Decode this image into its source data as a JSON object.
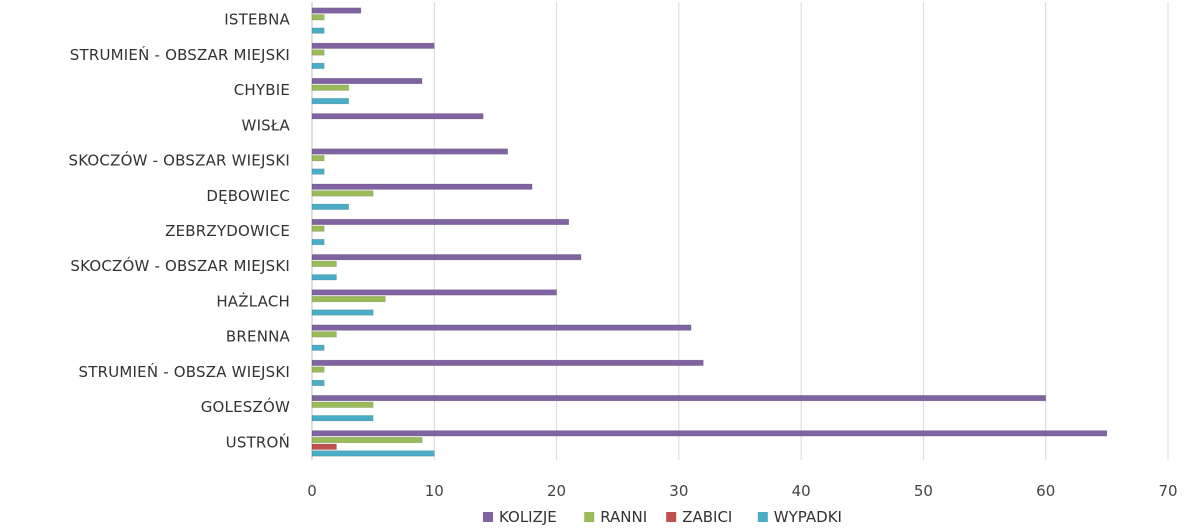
{
  "chart_data": {
    "type": "bar",
    "orientation": "horizontal",
    "categories": [
      "ISTEBNA",
      "STRUMIEŃ - OBSZAR MIEJSKI",
      "CHYBIE",
      "WISŁA",
      "SKOCZÓW - OBSZAR WIEJSKI",
      "DĘBOWIEC",
      "ZEBRZYDOWICE",
      "SKOCZÓW - OBSZAR MIEJSKI",
      "HAŻLACH",
      "BRENNA",
      "STRUMIEŃ - OBSZA WIEJSKI",
      "GOLESZÓW",
      "USTROŃ"
    ],
    "series": [
      {
        "name": "KOLIZJE",
        "color": "#8064a2",
        "values": [
          4,
          10,
          9,
          14,
          16,
          18,
          21,
          22,
          20,
          31,
          32,
          60,
          65
        ]
      },
      {
        "name": "RANNI",
        "color": "#9bbb59",
        "values": [
          1,
          1,
          3,
          0,
          1,
          5,
          1,
          2,
          6,
          2,
          1,
          5,
          9
        ]
      },
      {
        "name": "ZABICI",
        "color": "#c0504d",
        "values": [
          0,
          0,
          0,
          0,
          0,
          0,
          0,
          0,
          0,
          0,
          0,
          0,
          2
        ]
      },
      {
        "name": "WYPADKI",
        "color": "#4bacc6",
        "values": [
          1,
          1,
          3,
          0,
          1,
          3,
          1,
          2,
          5,
          1,
          1,
          5,
          10
        ]
      }
    ],
    "xlim": [
      0,
      70
    ],
    "x_ticks": [
      "0",
      "10",
      "20",
      "30",
      "40",
      "50",
      "60",
      "70"
    ],
    "grid": true,
    "legend_position": "bottom"
  }
}
